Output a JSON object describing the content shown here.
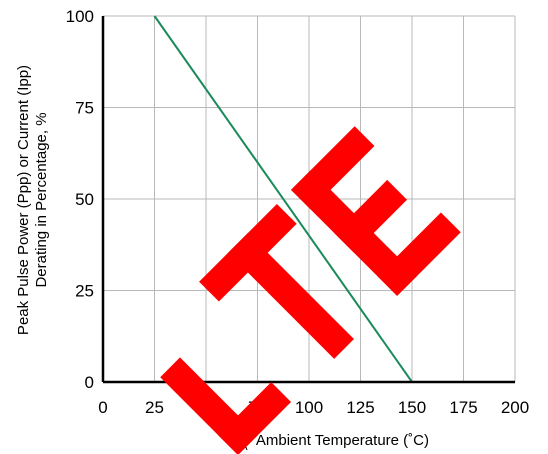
{
  "chart_data": {
    "type": "line",
    "xlim": [
      0,
      200
    ],
    "ylim": [
      0,
      100
    ],
    "x_ticks": [
      "0",
      "25",
      "50",
      "75",
      "100",
      "125",
      "150",
      "175",
      "200"
    ],
    "y_ticks": [
      "0",
      "25",
      "50",
      "75",
      "100"
    ],
    "grid": true,
    "xlabel_parts": [
      "T",
      "A",
      "- Ambient Temperature (˚C)"
    ],
    "ylabel_lines": [
      "Peak Pulse Power (Ppp) or Current (Ipp)",
      "Derating in Percentage, %"
    ],
    "series": [
      {
        "x": [
          25,
          150
        ],
        "y": [
          100,
          0
        ],
        "color": "#1a8a5a"
      }
    ],
    "watermark": {
      "text": "LTE",
      "color": "#ff0000"
    }
  }
}
